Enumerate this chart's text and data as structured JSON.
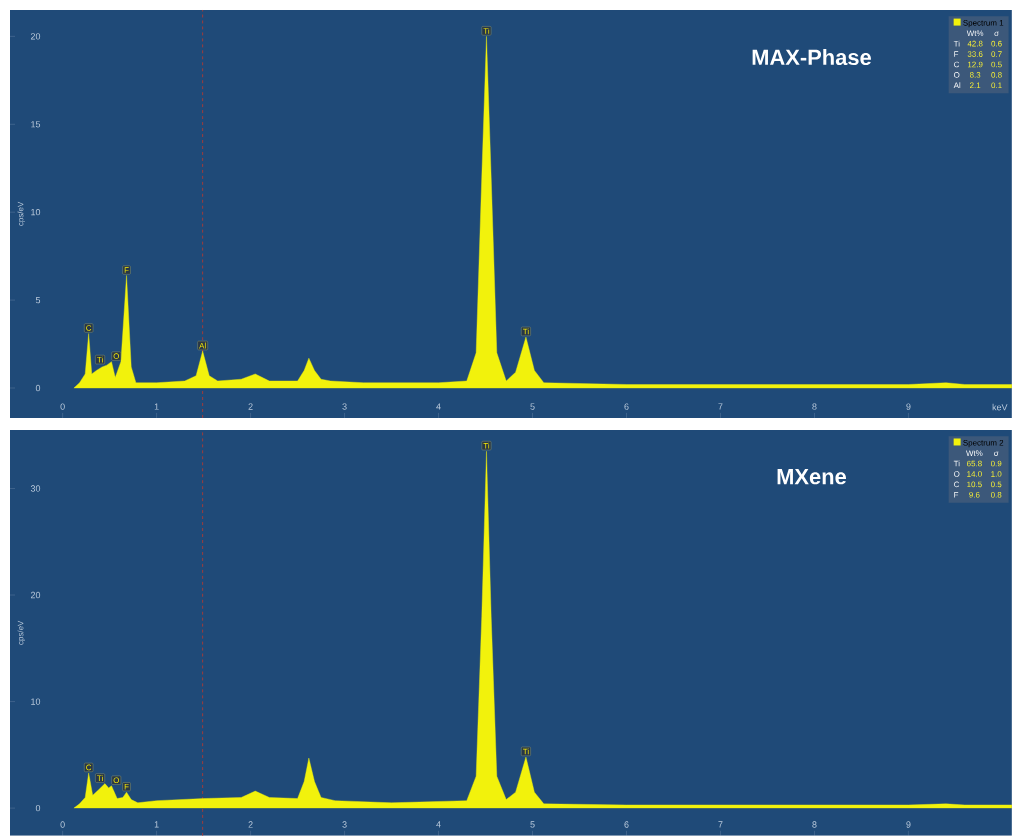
{
  "chart_data": [
    {
      "type": "area",
      "title": "MAX-Phase",
      "xlabel": "keV",
      "ylabel": "cps/eV",
      "legend": "top right",
      "xlim": [
        -0.56,
        10.1
      ],
      "xticks": [
        0,
        1,
        2,
        3,
        4,
        5,
        6,
        7,
        8,
        9
      ],
      "ylim": [
        -1.7,
        21.5
      ],
      "yticks": [
        0,
        5,
        10,
        15,
        20
      ],
      "x": [
        0.12,
        0.18,
        0.24,
        0.277,
        0.31,
        0.36,
        0.42,
        0.47,
        0.52,
        0.56,
        0.62,
        0.68,
        0.73,
        0.78,
        1.0,
        1.3,
        1.42,
        1.49,
        1.56,
        1.65,
        1.9,
        2.05,
        2.2,
        2.5,
        2.57,
        2.62,
        2.68,
        2.75,
        2.85,
        3.2,
        4.0,
        4.3,
        4.4,
        4.46,
        4.51,
        4.56,
        4.62,
        4.72,
        4.82,
        4.93,
        5.02,
        5.12,
        6.0,
        7.0,
        8.0,
        9.0,
        9.4,
        9.6,
        10.1
      ],
      "series": [
        {
          "name": "Spectrum 1",
          "color": "#f2f20c",
          "values": [
            0,
            0.3,
            0.8,
            3.1,
            0.8,
            1.0,
            1.2,
            1.3,
            1.5,
            0.6,
            1.5,
            6.4,
            1.2,
            0.3,
            0.3,
            0.4,
            0.7,
            2.1,
            0.7,
            0.4,
            0.5,
            0.8,
            0.4,
            0.4,
            1.0,
            1.7,
            1.0,
            0.5,
            0.4,
            0.3,
            0.3,
            0.4,
            2.0,
            12.0,
            20.0,
            12.0,
            2.0,
            0.4,
            0.9,
            2.9,
            1.0,
            0.3,
            0.2,
            0.2,
            0.2,
            0.2,
            0.3,
            0.2,
            0.2
          ]
        }
      ],
      "ref_lines": [
        {
          "axis": "x",
          "value": 1.49,
          "color": "#c0392b",
          "line_style": "dashed"
        }
      ],
      "annotations": [
        {
          "text": "C",
          "x": 0.277,
          "y": 3.1
        },
        {
          "text": "Ti",
          "x": 0.45,
          "y": 1.3
        },
        {
          "text": "O",
          "x": 0.52,
          "y": 1.5
        },
        {
          "text": "F",
          "x": 0.68,
          "y": 6.4
        },
        {
          "text": "Al",
          "x": 1.49,
          "y": 2.1
        },
        {
          "text": "Ti",
          "x": 4.51,
          "y": 20.0
        },
        {
          "text": "Ti",
          "x": 4.93,
          "y": 2.9
        },
        "Wt%",
        "σ",
        "Ti",
        "42.8",
        "0.6",
        "F",
        "33.6",
        "0.7",
        "C",
        "12.9",
        "0.5",
        "O",
        "8.3",
        "0.8",
        "Al",
        "2.1",
        "0.1"
      ]
    },
    {
      "type": "area",
      "title": "MXene",
      "ylabel": "cps/eV",
      "legend": "top right",
      "xlim": [
        -0.56,
        10.1
      ],
      "xticks": [
        0,
        1,
        2,
        3,
        4,
        5,
        6,
        7,
        8,
        9
      ],
      "ylim": [
        -2.6,
        35.5
      ],
      "yticks": [
        0,
        10,
        20,
        30
      ],
      "x": [
        0.12,
        0.18,
        0.24,
        0.277,
        0.32,
        0.38,
        0.45,
        0.49,
        0.52,
        0.58,
        0.64,
        0.68,
        0.73,
        0.8,
        1.0,
        1.5,
        1.9,
        2.05,
        2.2,
        2.5,
        2.57,
        2.62,
        2.68,
        2.75,
        2.9,
        3.5,
        4.3,
        4.4,
        4.46,
        4.51,
        4.56,
        4.62,
        4.72,
        4.82,
        4.93,
        5.02,
        5.12,
        6.0,
        7.0,
        8.0,
        9.0,
        9.4,
        9.6,
        10.1
      ],
      "series": [
        {
          "name": "Spectrum 2",
          "color": "#f2f20c",
          "values": [
            0,
            0.4,
            1.0,
            3.3,
            1.2,
            1.7,
            2.3,
            1.9,
            2.1,
            0.9,
            1.0,
            1.5,
            0.8,
            0.5,
            0.7,
            0.9,
            1.0,
            1.6,
            1.0,
            0.9,
            2.5,
            4.7,
            2.5,
            1.0,
            0.7,
            0.5,
            0.7,
            3.0,
            18.0,
            33.5,
            18.0,
            3.0,
            0.8,
            1.5,
            4.8,
            1.5,
            0.4,
            0.3,
            0.3,
            0.3,
            0.3,
            0.4,
            0.3,
            0.3
          ]
        }
      ],
      "ref_lines": [
        {
          "axis": "x",
          "value": 1.49,
          "color": "#c0392b",
          "line_style": "dashed"
        }
      ],
      "annotations": [
        {
          "text": "C",
          "x": 0.277,
          "y": 3.3
        },
        {
          "text": "Ti",
          "x": 0.45,
          "y": 2.3
        },
        {
          "text": "O",
          "x": 0.52,
          "y": 2.1
        },
        {
          "text": "F",
          "x": 0.68,
          "y": 1.5
        },
        {
          "text": "Ti",
          "x": 4.51,
          "y": 33.5
        },
        {
          "text": "Ti",
          "x": 4.93,
          "y": 4.8
        },
        "Wt%",
        "σ",
        "Ti",
        "65.8",
        "0.9",
        "O",
        "14.0",
        "1.0",
        "C",
        "10.5",
        "0.5",
        "F",
        "9.6",
        "0.8"
      ]
    }
  ]
}
